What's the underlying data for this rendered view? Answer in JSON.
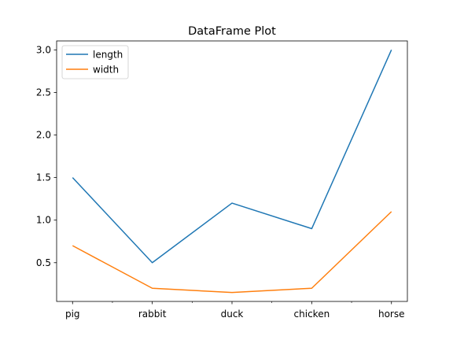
{
  "chart_data": {
    "type": "line",
    "title": "DataFrame Plot",
    "xlabel": "",
    "ylabel": "",
    "categories": [
      "pig",
      "rabbit",
      "duck",
      "chicken",
      "horse"
    ],
    "series": [
      {
        "name": "length",
        "values": [
          1.5,
          0.5,
          1.2,
          0.9,
          3.0
        ],
        "color": "#1f77b4"
      },
      {
        "name": "width",
        "values": [
          0.7,
          0.2,
          0.15,
          0.2,
          1.1
        ],
        "color": "#ff7f0e"
      }
    ],
    "ylim": [
      0.045,
      3.105
    ],
    "yticks": [
      0.5,
      1.0,
      1.5,
      2.0,
      2.5,
      3.0
    ],
    "ytick_labels": [
      "0.5",
      "1.0",
      "1.5",
      "2.0",
      "2.5",
      "3.0"
    ],
    "grid": false,
    "legend": "upper left"
  }
}
